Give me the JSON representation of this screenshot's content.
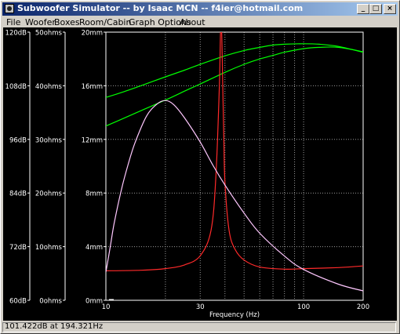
{
  "window": {
    "title": "Subwoofer Simulator -- by Isaac MCN -- f4ier@hotmail.com",
    "minimize_label": "_",
    "maximize_label": "□",
    "close_label": "×"
  },
  "menu": {
    "items": [
      "File",
      "Woofer",
      "Boxes",
      "Room/Cabin",
      "Graph Options",
      "About"
    ]
  },
  "chart_data": {
    "type": "line",
    "background": "#000000",
    "xlabel": "Frequency (Hz)",
    "x_scale": "log",
    "xlim": [
      10,
      200
    ],
    "x_tick_labels": [
      "10",
      "30",
      "100",
      "200"
    ],
    "x_gridlines": [
      20,
      30,
      40,
      50,
      60,
      70,
      80,
      90,
      100
    ],
    "y_axes": [
      {
        "labels": [
          "120dB",
          "108dB",
          "96dB",
          "84dB",
          "72dB",
          "60dB"
        ],
        "range": [
          60,
          120
        ],
        "unit": "dB"
      },
      {
        "labels": [
          "50ohms",
          "40ohms",
          "30ohms",
          "20ohms",
          "10ohms",
          "0ohms"
        ],
        "range": [
          0,
          50
        ],
        "unit": "ohms"
      },
      {
        "labels": [
          "20mm",
          "16mm",
          "12mm",
          "8mm",
          "4mm",
          "0mm"
        ],
        "range": [
          0,
          20
        ],
        "unit": "mm"
      }
    ],
    "grid": true,
    "series": [
      {
        "color": "#00ff00",
        "axis": "dB",
        "x": [
          10,
          12,
          15,
          20,
          25,
          30,
          40,
          50,
          60,
          70,
          80,
          100,
          120,
          150,
          200
        ],
        "values": [
          105.4,
          106.5,
          108.0,
          110.0,
          111.5,
          112.8,
          114.7,
          115.9,
          116.6,
          117.1,
          117.3,
          117.4,
          117.3,
          116.8,
          115.5
        ]
      },
      {
        "color": "#00ff00",
        "axis": "dB",
        "x": [
          10,
          12,
          15,
          20,
          25,
          30,
          40,
          50,
          60,
          70,
          80,
          100,
          120,
          150,
          200
        ],
        "values": [
          99.0,
          100.5,
          102.4,
          104.8,
          106.8,
          108.4,
          111.0,
          112.8,
          114.0,
          114.8,
          115.5,
          116.3,
          116.6,
          116.6,
          115.6
        ]
      },
      {
        "color": "#ff2a2a",
        "axis": "ohms",
        "x": [
          10,
          15,
          20,
          25,
          30,
          34,
          36,
          37.5,
          38,
          38.5,
          39,
          39.5,
          40,
          42,
          45,
          50,
          60,
          80,
          100,
          150,
          200
        ],
        "values": [
          5.5,
          5.6,
          5.9,
          6.6,
          8.3,
          13.0,
          23.0,
          40.0,
          50.0,
          50.0,
          40.0,
          30.0,
          22.0,
          13.0,
          9.5,
          7.5,
          6.2,
          5.8,
          5.9,
          6.1,
          6.4
        ]
      },
      {
        "color": "#ffc8ff",
        "axis": "mm",
        "x": [
          10,
          10.5,
          11,
          12,
          13,
          14,
          16,
          18,
          20,
          22,
          25,
          30,
          35,
          40,
          50,
          60,
          80,
          100,
          150,
          200
        ],
        "values": [
          2.1,
          3.9,
          5.7,
          8.3,
          10.2,
          11.7,
          13.7,
          14.6,
          14.9,
          14.6,
          13.6,
          11.8,
          10.0,
          8.6,
          6.5,
          5.0,
          3.3,
          2.3,
          1.2,
          0.7
        ]
      }
    ]
  },
  "status": {
    "text": "101.422dB at 194.321Hz"
  }
}
